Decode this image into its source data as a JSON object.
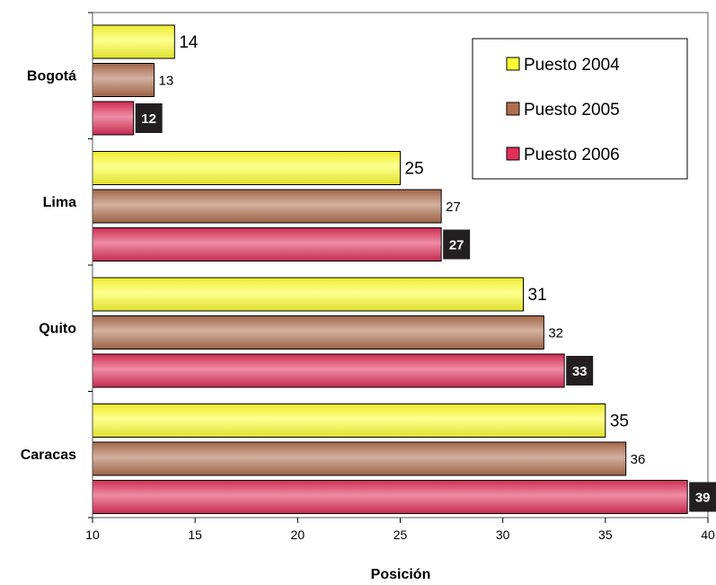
{
  "chart_data": {
    "type": "bar",
    "orientation": "horizontal",
    "title": "",
    "xlabel": "Posición",
    "ylabel": "",
    "xlim": [
      10,
      40
    ],
    "x_ticks": [
      10,
      15,
      20,
      25,
      30,
      35,
      40
    ],
    "x_tick_labels": [
      "10",
      "15",
      "20",
      "25",
      "30",
      "35",
      "40"
    ],
    "categories": [
      "Bogotá",
      "Lima",
      "Quito",
      "Caracas"
    ],
    "series": [
      {
        "name": "Puesto 2004",
        "values": [
          14,
          25,
          31,
          35
        ],
        "color": "#ffff33",
        "label_style": "plain-large"
      },
      {
        "name": "Puesto 2005",
        "values": [
          13,
          27,
          32,
          36
        ],
        "color": "#b07050",
        "label_style": "plain-small"
      },
      {
        "name": "Puesto 2006",
        "values": [
          12,
          27,
          33,
          39
        ],
        "color": "#e0305a",
        "label_style": "dark-box"
      }
    ],
    "legend_position": "top-right",
    "grid": false
  }
}
